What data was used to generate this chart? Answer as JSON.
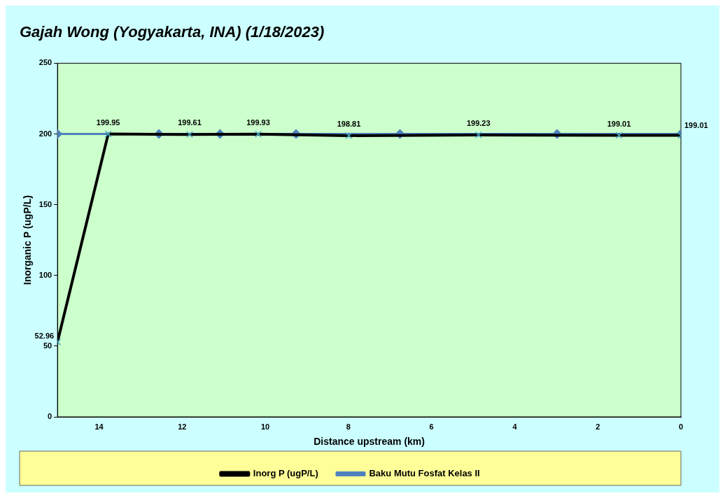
{
  "chart_data": {
    "type": "line",
    "title": "Gajah Wong (Yogyakarta, INA) (1/18/2023)",
    "xlabel": "Distance upstream (km)",
    "ylabel": "Inorganic P (ugP/L)",
    "xlim": [
      15,
      0
    ],
    "xticks": [
      14,
      12,
      10,
      8,
      6,
      4,
      2,
      0
    ],
    "ylim": [
      0,
      250
    ],
    "yticks": [
      0,
      50,
      100,
      150,
      200,
      250
    ],
    "grid": false,
    "legend": "bottom",
    "series": [
      {
        "name": "Inorg P (ugP/L)",
        "color": "#000000",
        "marker": "cross",
        "x": [
          15,
          13.78,
          11.82,
          10.17,
          7.99,
          4.87,
          1.49,
          0
        ],
        "values": [
          52.96,
          199.95,
          199.61,
          199.93,
          198.81,
          199.23,
          199.01,
          199.01
        ],
        "value_labels": [
          "52.96",
          "199.95",
          "199.61",
          "199.93",
          "198.81",
          "199.23",
          "199.01",
          "199.01"
        ]
      },
      {
        "name": "Baku Mutu Fosfat Kelas II",
        "color": "#4f81bd",
        "marker": "diamond",
        "x": [
          15,
          12.56,
          11.09,
          9.26,
          6.76,
          2.98,
          0
        ],
        "values": [
          200,
          200,
          200,
          200,
          200,
          200,
          200
        ]
      }
    ]
  }
}
